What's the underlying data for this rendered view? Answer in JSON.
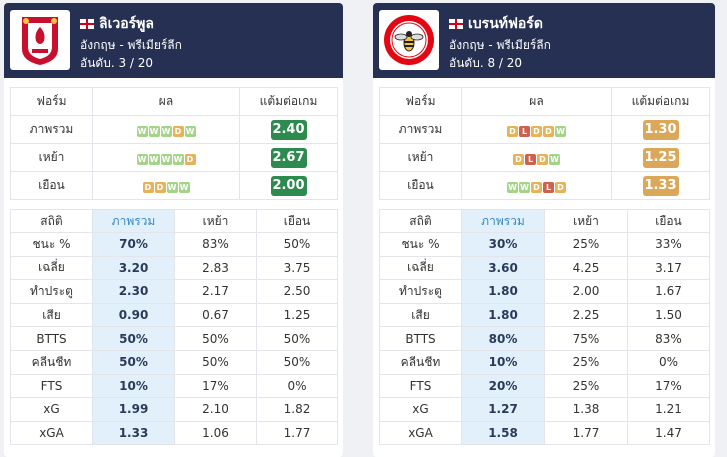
{
  "colors": {
    "header": "#253052",
    "win": "#a5d38a",
    "draw": "#e6b25a",
    "loss": "#d0604e",
    "ppg_high": "#2e8b4f",
    "ppg_low": "#dba85a",
    "highlight": "#e1f0fb"
  },
  "teams": [
    {
      "name": "ลิเวอร์พูล",
      "league": "อังกฤษ - พรีเมียร์ลีก",
      "rank": "อันดับ. 3 / 20",
      "logo_icon": "liverpool-crest-icon",
      "form_headers": [
        "ฟอร์ม",
        "ผล",
        "แต้มต่อเกม"
      ],
      "form_rows": [
        {
          "label": "ภาพรวม",
          "results": [
            "W",
            "W",
            "W",
            "D",
            "W"
          ],
          "ppg": "2.40",
          "ppg_color": "green"
        },
        {
          "label": "เหย้า",
          "results": [
            "W",
            "W",
            "W",
            "W",
            "D"
          ],
          "ppg": "2.67",
          "ppg_color": "green"
        },
        {
          "label": "เยือน",
          "results": [
            "D",
            "D",
            "W",
            "W"
          ],
          "ppg": "2.00",
          "ppg_color": "green"
        }
      ],
      "stats_headers": [
        "สถิติ",
        "ภาพรวม",
        "เหย้า",
        "เยือน"
      ],
      "stats_rows": [
        {
          "label": "ชนะ %",
          "overall": "70%",
          "home": "83%",
          "away": "50%"
        },
        {
          "label": "เฉลี่ย",
          "overall": "3.20",
          "home": "2.83",
          "away": "3.75"
        },
        {
          "label": "ทำประตู",
          "overall": "2.30",
          "home": "2.17",
          "away": "2.50"
        },
        {
          "label": "เสีย",
          "overall": "0.90",
          "home": "0.67",
          "away": "1.25"
        },
        {
          "label": "BTTS",
          "overall": "50%",
          "home": "50%",
          "away": "50%"
        },
        {
          "label": "คลีนชีท",
          "overall": "50%",
          "home": "50%",
          "away": "50%"
        },
        {
          "label": "FTS",
          "overall": "10%",
          "home": "17%",
          "away": "0%"
        },
        {
          "label": "xG",
          "overall": "1.99",
          "home": "2.10",
          "away": "1.82"
        },
        {
          "label": "xGA",
          "overall": "1.33",
          "home": "1.06",
          "away": "1.77"
        }
      ]
    },
    {
      "name": "เบรนท์ฟอร์ด",
      "league": "อังกฤษ - พรีเมียร์ลีก",
      "rank": "อันดับ. 8 / 20",
      "logo_icon": "brentford-bee-crest-icon",
      "form_headers": [
        "ฟอร์ม",
        "ผล",
        "แต้มต่อเกม"
      ],
      "form_rows": [
        {
          "label": "ภาพรวม",
          "results": [
            "D",
            "L",
            "D",
            "D",
            "W"
          ],
          "ppg": "1.30",
          "ppg_color": "amber"
        },
        {
          "label": "เหย้า",
          "results": [
            "D",
            "L",
            "D",
            "W"
          ],
          "ppg": "1.25",
          "ppg_color": "amber"
        },
        {
          "label": "เยือน",
          "results": [
            "W",
            "W",
            "D",
            "L",
            "D"
          ],
          "ppg": "1.33",
          "ppg_color": "amber"
        }
      ],
      "stats_headers": [
        "สถิติ",
        "ภาพรวม",
        "เหย้า",
        "เยือน"
      ],
      "stats_rows": [
        {
          "label": "ชนะ %",
          "overall": "30%",
          "home": "25%",
          "away": "33%"
        },
        {
          "label": "เฉลี่ย",
          "overall": "3.60",
          "home": "4.25",
          "away": "3.17"
        },
        {
          "label": "ทำประตู",
          "overall": "1.80",
          "home": "2.00",
          "away": "1.67"
        },
        {
          "label": "เสีย",
          "overall": "1.80",
          "home": "2.25",
          "away": "1.50"
        },
        {
          "label": "BTTS",
          "overall": "80%",
          "home": "75%",
          "away": "83%"
        },
        {
          "label": "คลีนชีท",
          "overall": "10%",
          "home": "25%",
          "away": "0%"
        },
        {
          "label": "FTS",
          "overall": "20%",
          "home": "25%",
          "away": "17%"
        },
        {
          "label": "xG",
          "overall": "1.27",
          "home": "1.38",
          "away": "1.21"
        },
        {
          "label": "xGA",
          "overall": "1.58",
          "home": "1.77",
          "away": "1.47"
        }
      ]
    }
  ]
}
